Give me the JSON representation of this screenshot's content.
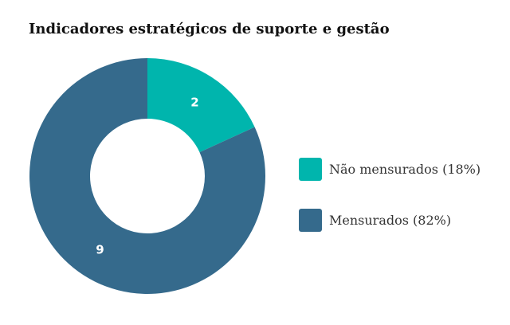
{
  "chart_data": {
    "type": "pie",
    "donut": true,
    "title": "Indicadores estratégicos de suporte e gestão",
    "slices": [
      {
        "label": "Não mensurados (18%)",
        "value": 2,
        "color": "#00b5ad"
      },
      {
        "label": "Mensurados (82%)",
        "value": 9,
        "color": "#356a8c"
      }
    ],
    "legend_position": "right"
  }
}
